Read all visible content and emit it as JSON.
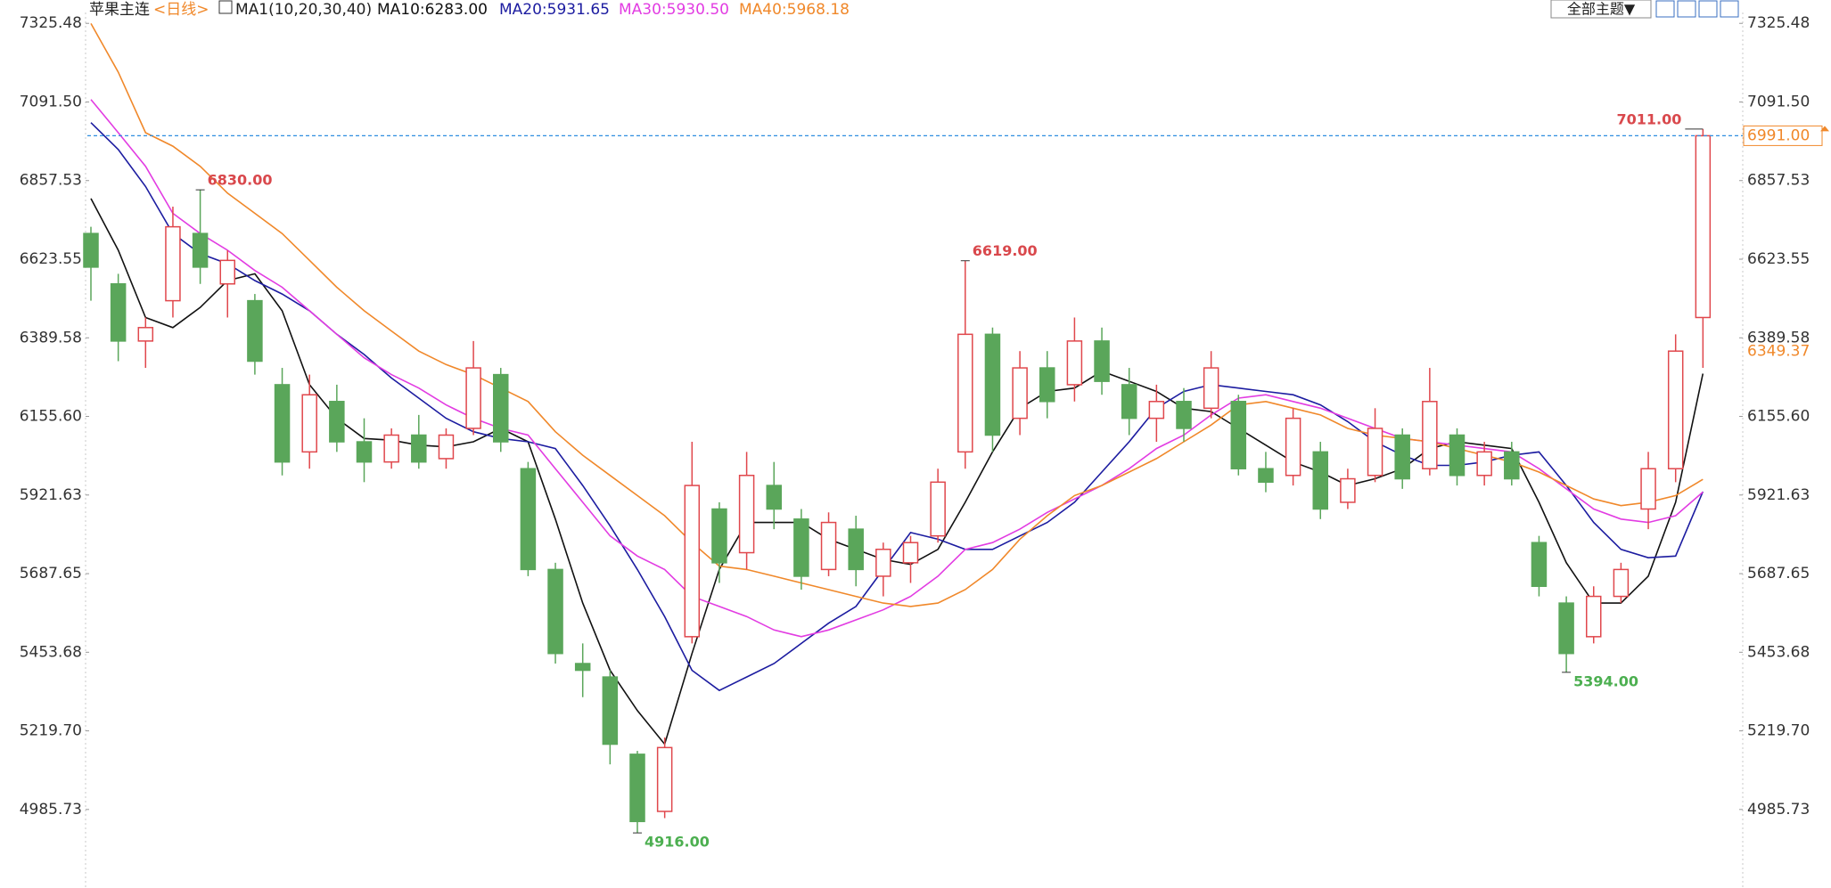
{
  "chart_data": {
    "type": "candlestick",
    "title": "苹果主连",
    "period": "<日线>",
    "indicator": "MA1(10,20,30,40)",
    "theme_button": "全部主题▼",
    "ylim": [
      4752,
      7395
    ],
    "yticks": [
      7325.48,
      {
        "value": 7091.5,
        "label": "7091.50"
      },
      6857.53,
      6623.55,
      6389.58,
      {
        "value": 6155.6,
        "label": "6155.60"
      },
      5921.63,
      5687.65,
      5453.68,
      {
        "value": 5219.7,
        "label": "5219.70"
      },
      4985.73
    ],
    "up_color": "#e0474c",
    "down_color": "#5aa65a",
    "open": [
      6700,
      6550,
      6380,
      6500,
      6700,
      6550,
      6500,
      6250,
      6050,
      6200,
      6080,
      6020,
      6100,
      6030,
      6120,
      6280,
      6000,
      5700,
      5420,
      5380,
      5150,
      4980,
      5500,
      5880,
      5750,
      5950,
      5850,
      5700,
      5820,
      5680,
      5720,
      5800,
      6050,
      6400,
      6150,
      6300,
      6250,
      6380,
      6250,
      6150,
      6200,
      6180,
      6200,
      6000,
      5980,
      6050,
      5900,
      5980,
      6100,
      6000,
      6100,
      5980,
      6050,
      5780,
      5600,
      5500,
      5620,
      5880,
      6000,
      6450
    ],
    "high": [
      6720,
      6580,
      6450,
      6780,
      6830,
      6650,
      6520,
      6300,
      6280,
      6250,
      6150,
      6120,
      6160,
      6120,
      6380,
      6300,
      6020,
      5720,
      5480,
      5400,
      5160,
      5200,
      6080,
      5900,
      6050,
      6020,
      5880,
      5870,
      5860,
      5780,
      5800,
      6000,
      6619,
      6420,
      6350,
      6350,
      6450,
      6420,
      6300,
      6250,
      6240,
      6350,
      6220,
      6050,
      6180,
      6080,
      6000,
      6180,
      6120,
      6300,
      6120,
      6080,
      6080,
      5800,
      5620,
      5650,
      5720,
      6050,
      6400,
      7011
    ],
    "low": [
      6500,
      6320,
      6300,
      6450,
      6550,
      6450,
      6280,
      5980,
      6000,
      6050,
      5960,
      6000,
      6000,
      6000,
      6100,
      6050,
      5680,
      5420,
      5320,
      5120,
      4916,
      4960,
      5480,
      5660,
      5700,
      5820,
      5640,
      5680,
      5650,
      5620,
      5660,
      5780,
      6000,
      6050,
      6100,
      6150,
      6200,
      6220,
      6100,
      6080,
      6080,
      6150,
      5980,
      5930,
      5950,
      5850,
      5880,
      5960,
      5940,
      5980,
      5950,
      5950,
      5950,
      5620,
      5394,
      5480,
      5600,
      5820,
      5960,
      6300
    ],
    "close": [
      6600,
      6380,
      6420,
      6720,
      6600,
      6620,
      6320,
      6020,
      6220,
      6080,
      6020,
      6100,
      6020,
      6100,
      6300,
      6080,
      5700,
      5450,
      5400,
      5180,
      4950,
      5170,
      5950,
      5720,
      5980,
      5880,
      5680,
      5840,
      5700,
      5760,
      5780,
      5960,
      6400,
      6100,
      6300,
      6200,
      6380,
      6260,
      6150,
      6200,
      6120,
      6300,
      6000,
      5960,
      6150,
      5880,
      5970,
      6120,
      5970,
      6200,
      5980,
      6050,
      5970,
      5650,
      5450,
      5620,
      5700,
      6000,
      6350,
      6991
    ],
    "high_value_labels": [
      null,
      null,
      null,
      null,
      "6830.00",
      null,
      null,
      null,
      null,
      null,
      null,
      null,
      null,
      null,
      null,
      null,
      null,
      null,
      null,
      null,
      null,
      null,
      null,
      null,
      null,
      null,
      null,
      null,
      null,
      null,
      null,
      null,
      "6619.00",
      null,
      null,
      null,
      null,
      null,
      null,
      null,
      null,
      null,
      null,
      null,
      null,
      null,
      null,
      null,
      null,
      null,
      null,
      null,
      null,
      null,
      null,
      null,
      null,
      null,
      null,
      "7011.00"
    ],
    "low_value_labels": [
      null,
      null,
      null,
      null,
      null,
      null,
      null,
      null,
      null,
      null,
      null,
      null,
      null,
      null,
      null,
      null,
      null,
      null,
      null,
      null,
      "4916.00",
      null,
      null,
      null,
      null,
      null,
      null,
      null,
      null,
      null,
      null,
      null,
      null,
      null,
      null,
      null,
      null,
      null,
      null,
      null,
      null,
      null,
      null,
      null,
      null,
      null,
      null,
      null,
      null,
      null,
      null,
      null,
      null,
      null,
      "5394.00",
      null,
      null,
      null,
      null,
      null
    ],
    "series": [
      {
        "name": "MA10:6283.00",
        "color": "#111111",
        "values": [
          6804,
          6650,
          6450,
          6420,
          6480,
          6560,
          6580,
          6470,
          6250,
          6150,
          6090,
          6085,
          6070,
          6065,
          6080,
          6120,
          6080,
          5850,
          5600,
          5400,
          5280,
          5180,
          5450,
          5700,
          5840,
          5840,
          5840,
          5790,
          5760,
          5730,
          5715,
          5760,
          5900,
          6050,
          6180,
          6230,
          6240,
          6290,
          6260,
          6230,
          6180,
          6170,
          6120,
          6070,
          6020,
          5990,
          5950,
          5970,
          6000,
          6060,
          6080,
          6070,
          6060,
          5900,
          5720,
          5600,
          5600,
          5680,
          5900,
          6283
        ]
      },
      {
        "name": "MA20:5931.65",
        "color": "#1c1ca0",
        "values": [
          7030,
          6950,
          6840,
          6700,
          6640,
          6610,
          6560,
          6520,
          6470,
          6400,
          6340,
          6270,
          6210,
          6150,
          6110,
          6090,
          6080,
          6060,
          5950,
          5830,
          5700,
          5560,
          5400,
          5340,
          5380,
          5420,
          5480,
          5540,
          5590,
          5700,
          5810,
          5790,
          5760,
          5760,
          5800,
          5840,
          5900,
          5990,
          6080,
          6180,
          6230,
          6250,
          6240,
          6230,
          6220,
          6190,
          6140,
          6080,
          6040,
          6010,
          6010,
          6020,
          6040,
          6050,
          5950,
          5840,
          5760,
          5735,
          5740,
          5931.65
        ]
      },
      {
        "name": "MA30:5930.50",
        "color": "#e23ce2",
        "values": [
          7099,
          7000,
          6900,
          6760,
          6700,
          6650,
          6590,
          6540,
          6470,
          6400,
          6330,
          6280,
          6240,
          6190,
          6150,
          6120,
          6100,
          6000,
          5900,
          5800,
          5740,
          5700,
          5620,
          5590,
          5560,
          5520,
          5500,
          5520,
          5550,
          5580,
          5620,
          5680,
          5760,
          5780,
          5820,
          5870,
          5910,
          5950,
          6000,
          6060,
          6100,
          6160,
          6210,
          6220,
          6200,
          6180,
          6150,
          6120,
          6090,
          6080,
          6070,
          6060,
          6050,
          6000,
          5940,
          5880,
          5850,
          5840,
          5860,
          5930.5
        ]
      },
      {
        "name": "MA40:5968.18",
        "color": "#f0882a",
        "values": [
          7325,
          7180,
          7000,
          6960,
          6900,
          6820,
          6760,
          6700,
          6620,
          6540,
          6470,
          6410,
          6350,
          6310,
          6280,
          6240,
          6200,
          6110,
          6040,
          5980,
          5920,
          5860,
          5780,
          5710,
          5700,
          5680,
          5660,
          5640,
          5620,
          5600,
          5590,
          5600,
          5640,
          5700,
          5790,
          5860,
          5920,
          5950,
          5990,
          6030,
          6080,
          6130,
          6190,
          6200,
          6180,
          6160,
          6120,
          6100,
          6090,
          6080,
          6060,
          6040,
          6020,
          5990,
          5950,
          5910,
          5890,
          5900,
          5920,
          5968.18
        ]
      }
    ],
    "last_price": {
      "value": 6991,
      "label": "6991.00"
    },
    "price_marker": 6349.37
  }
}
